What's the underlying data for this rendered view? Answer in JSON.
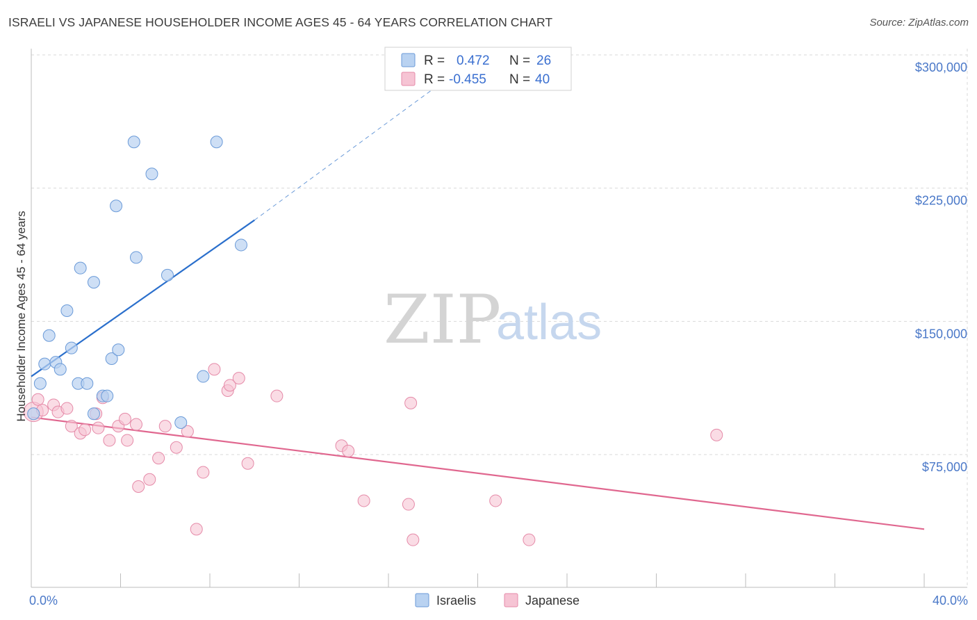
{
  "title": "ISRAELI VS JAPANESE HOUSEHOLDER INCOME AGES 45 - 64 YEARS CORRELATION CHART",
  "source": "Source: ZipAtlas.com",
  "watermark": {
    "zip": "ZIP",
    "atlas": "atlas"
  },
  "colors": {
    "israeli_fill": "#b9d2f1",
    "israeli_stroke": "#6a9ad8",
    "israeli_line": "#2a6fcc",
    "japanese_fill": "#f6c4d4",
    "japanese_stroke": "#e58aa8",
    "japanese_line": "#e0678f",
    "axis_text": "#4a78c8",
    "grid": "#d9d9d9"
  },
  "legend": {
    "rows": [
      {
        "r_label": "R =",
        "r_value": "0.472",
        "n_label": "N =",
        "n_value": "26"
      },
      {
        "r_label": "R =",
        "r_value": "-0.455",
        "n_label": "N =",
        "n_value": "40"
      }
    ]
  },
  "bottom_legend": [
    "Israelis",
    "Japanese"
  ],
  "chart_data": {
    "type": "scatter",
    "title": "ISRAELI VS JAPANESE HOUSEHOLDER INCOME AGES 45 - 64 YEARS CORRELATION CHART",
    "xlabel": "",
    "ylabel": "Householder Income Ages 45 - 64 years",
    "xlim": [
      0,
      40
    ],
    "ylim": [
      0,
      310000
    ],
    "x_tick_labels": [
      "0.0%",
      "40.0%"
    ],
    "y_tick_labels": [
      "$75,000",
      "$150,000",
      "$225,000",
      "$300,000"
    ],
    "y_ticks": [
      75000,
      150000,
      225000,
      300000
    ],
    "grid": true,
    "legend_position": "top-center",
    "series": [
      {
        "name": "Israelis",
        "points": [
          [
            0.1,
            98000
          ],
          [
            0.4,
            115000
          ],
          [
            0.6,
            126000
          ],
          [
            0.8,
            142000
          ],
          [
            1.1,
            127000
          ],
          [
            1.3,
            123000
          ],
          [
            1.6,
            156000
          ],
          [
            1.8,
            135000
          ],
          [
            2.1,
            115000
          ],
          [
            2.2,
            180000
          ],
          [
            2.5,
            115000
          ],
          [
            2.8,
            98000
          ],
          [
            2.8,
            172000
          ],
          [
            3.2,
            108000
          ],
          [
            3.4,
            108000
          ],
          [
            3.6,
            129000
          ],
          [
            3.8,
            215000
          ],
          [
            3.9,
            134000
          ],
          [
            4.6,
            251000
          ],
          [
            4.7,
            186000
          ],
          [
            5.4,
            233000
          ],
          [
            6.1,
            176000
          ],
          [
            6.7,
            93000
          ],
          [
            7.7,
            119000
          ],
          [
            8.3,
            251000
          ],
          [
            9.4,
            193000
          ]
        ],
        "trend": {
          "x": [
            0,
            10
          ],
          "y": [
            119000,
            207000
          ],
          "extension_x": [
            10,
            19
          ],
          "extension_y": [
            207000,
            290000
          ]
        }
      },
      {
        "name": "Japanese",
        "points": [
          [
            0.1,
            99000
          ],
          [
            0.3,
            106000
          ],
          [
            0.5,
            100000
          ],
          [
            1.0,
            103000
          ],
          [
            1.2,
            99000
          ],
          [
            1.6,
            101000
          ],
          [
            1.8,
            91000
          ],
          [
            2.2,
            87000
          ],
          [
            2.4,
            89000
          ],
          [
            2.9,
            98000
          ],
          [
            3.0,
            90000
          ],
          [
            3.2,
            107000
          ],
          [
            3.5,
            83000
          ],
          [
            3.9,
            91000
          ],
          [
            4.2,
            95000
          ],
          [
            4.3,
            83000
          ],
          [
            4.7,
            92000
          ],
          [
            4.8,
            57000
          ],
          [
            5.3,
            61000
          ],
          [
            5.7,
            73000
          ],
          [
            6.0,
            91000
          ],
          [
            6.5,
            79000
          ],
          [
            7.0,
            88000
          ],
          [
            7.4,
            33000
          ],
          [
            7.7,
            65000
          ],
          [
            8.2,
            123000
          ],
          [
            8.8,
            111000
          ],
          [
            8.9,
            114000
          ],
          [
            9.3,
            118000
          ],
          [
            9.7,
            70000
          ],
          [
            11.0,
            108000
          ],
          [
            13.9,
            80000
          ],
          [
            14.2,
            77000
          ],
          [
            14.9,
            49000
          ],
          [
            16.9,
            47000
          ],
          [
            17.0,
            104000
          ],
          [
            17.1,
            27000
          ],
          [
            20.8,
            49000
          ],
          [
            22.3,
            27000
          ],
          [
            30.7,
            86000
          ]
        ],
        "trend": {
          "x": [
            0,
            40
          ],
          "y": [
            96000,
            33000
          ]
        }
      }
    ]
  }
}
